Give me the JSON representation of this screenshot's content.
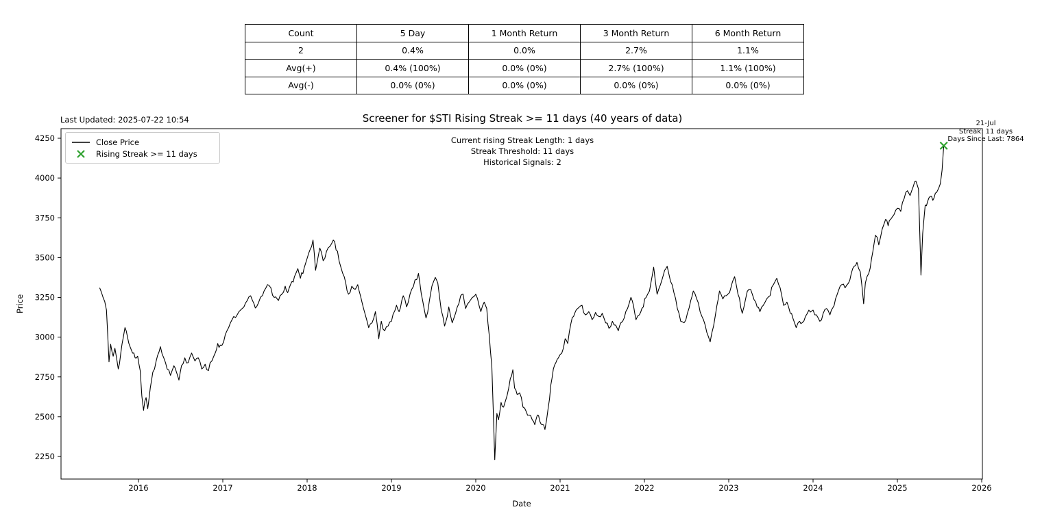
{
  "figure": {
    "last_updated": "Last Updated: 2025-07-22 10:54",
    "title": "Screener for $STI Rising Streak >= 11 days (40 years of data)"
  },
  "stats_table": {
    "headers": [
      "Count",
      "5 Day",
      "1 Month Return",
      "3 Month Return",
      "6 Month Return"
    ],
    "rows": [
      [
        "2",
        "0.4%",
        "0.0%",
        "2.7%",
        "1.1%"
      ],
      [
        "Avg(+)",
        "0.4% (100%)",
        "0.0% (0%)",
        "2.7% (100%)",
        "1.1% (100%)"
      ],
      [
        "Avg(-)",
        "0.0% (0%)",
        "0.0% (0%)",
        "0.0% (0%)",
        "0.0% (0%)"
      ]
    ]
  },
  "chart_data": {
    "type": "line",
    "title": "Screener for $STI Rising Streak >= 11 days (40 years of data)",
    "xlabel": "Date",
    "ylabel": "Price",
    "x_ticks": [
      2016,
      2017,
      2018,
      2019,
      2020,
      2021,
      2022,
      2023,
      2024,
      2025,
      2026
    ],
    "y_ticks": [
      2250,
      2500,
      2750,
      3000,
      3250,
      3500,
      3750,
      4000,
      4250
    ],
    "xlim": [
      2015.07,
      2026.01
    ],
    "ylim": [
      2100,
      4315
    ],
    "grid": false,
    "legend": {
      "position": "upper left",
      "entries": [
        {
          "label": "Close Price",
          "marker": "line",
          "color": "#000000"
        },
        {
          "label": "Rising Streak >= 11 days",
          "marker": "x",
          "color": "#2ca02c"
        }
      ]
    },
    "annotations": {
      "center": [
        "Current rising Streak Length: 1 days",
        "Streak Threshold: 11 days",
        "Historical Signals: 2"
      ],
      "last_signal": [
        "21-Jul",
        "Streak: 11 days",
        "Days Since Last: 7864"
      ]
    },
    "series": [
      {
        "name": "Close Price",
        "color": "#000000",
        "points": [
          [
            2015.54,
            3310
          ],
          [
            2015.58,
            3250
          ],
          [
            2015.62,
            3170
          ],
          [
            2015.65,
            2845
          ],
          [
            2015.67,
            2955
          ],
          [
            2015.7,
            2880
          ],
          [
            2015.72,
            2930
          ],
          [
            2015.74,
            2870
          ],
          [
            2015.76,
            2800
          ],
          [
            2015.79,
            2900
          ],
          [
            2015.82,
            3000
          ],
          [
            2015.84,
            3060
          ],
          [
            2015.87,
            3000
          ],
          [
            2015.9,
            2940
          ],
          [
            2015.93,
            2900
          ],
          [
            2015.96,
            2870
          ],
          [
            2015.99,
            2880
          ],
          [
            2016.02,
            2790
          ],
          [
            2016.04,
            2630
          ],
          [
            2016.06,
            2540
          ],
          [
            2016.09,
            2620
          ],
          [
            2016.11,
            2550
          ],
          [
            2016.14,
            2680
          ],
          [
            2016.17,
            2780
          ],
          [
            2016.21,
            2850
          ],
          [
            2016.26,
            2940
          ],
          [
            2016.3,
            2870
          ],
          [
            2016.34,
            2800
          ],
          [
            2016.38,
            2760
          ],
          [
            2016.42,
            2820
          ],
          [
            2016.45,
            2780
          ],
          [
            2016.48,
            2730
          ],
          [
            2016.51,
            2820
          ],
          [
            2016.55,
            2870
          ],
          [
            2016.59,
            2840
          ],
          [
            2016.63,
            2900
          ],
          [
            2016.67,
            2850
          ],
          [
            2016.71,
            2870
          ],
          [
            2016.75,
            2800
          ],
          [
            2016.79,
            2830
          ],
          [
            2016.83,
            2790
          ],
          [
            2016.87,
            2850
          ],
          [
            2016.91,
            2900
          ],
          [
            2016.94,
            2960
          ],
          [
            2016.97,
            2950
          ],
          [
            2017.01,
            2970
          ],
          [
            2017.05,
            3040
          ],
          [
            2017.09,
            3090
          ],
          [
            2017.13,
            3130
          ],
          [
            2017.17,
            3140
          ],
          [
            2017.21,
            3170
          ],
          [
            2017.25,
            3190
          ],
          [
            2017.29,
            3230
          ],
          [
            2017.33,
            3260
          ],
          [
            2017.37,
            3210
          ],
          [
            2017.4,
            3190
          ],
          [
            2017.44,
            3240
          ],
          [
            2017.47,
            3260
          ],
          [
            2017.53,
            3330
          ],
          [
            2017.57,
            3310
          ],
          [
            2017.61,
            3250
          ],
          [
            2017.66,
            3230
          ],
          [
            2017.7,
            3270
          ],
          [
            2017.74,
            3320
          ],
          [
            2017.77,
            3280
          ],
          [
            2017.82,
            3350
          ],
          [
            2017.85,
            3380
          ],
          [
            2017.89,
            3430
          ],
          [
            2017.92,
            3370
          ],
          [
            2017.95,
            3400
          ],
          [
            2017.98,
            3460
          ],
          [
            2018.02,
            3530
          ],
          [
            2018.07,
            3610
          ],
          [
            2018.1,
            3420
          ],
          [
            2018.15,
            3560
          ],
          [
            2018.19,
            3480
          ],
          [
            2018.23,
            3540
          ],
          [
            2018.27,
            3570
          ],
          [
            2018.31,
            3610
          ],
          [
            2018.36,
            3540
          ],
          [
            2018.4,
            3440
          ],
          [
            2018.44,
            3380
          ],
          [
            2018.49,
            3270
          ],
          [
            2018.53,
            3320
          ],
          [
            2018.57,
            3300
          ],
          [
            2018.6,
            3330
          ],
          [
            2018.65,
            3220
          ],
          [
            2018.69,
            3140
          ],
          [
            2018.73,
            3060
          ],
          [
            2018.77,
            3090
          ],
          [
            2018.81,
            3160
          ],
          [
            2018.85,
            2990
          ],
          [
            2018.88,
            3100
          ],
          [
            2018.92,
            3040
          ],
          [
            2018.96,
            3070
          ],
          [
            2019.0,
            3100
          ],
          [
            2019.06,
            3200
          ],
          [
            2019.09,
            3160
          ],
          [
            2019.14,
            3260
          ],
          [
            2019.18,
            3190
          ],
          [
            2019.24,
            3300
          ],
          [
            2019.28,
            3360
          ],
          [
            2019.32,
            3400
          ],
          [
            2019.37,
            3230
          ],
          [
            2019.41,
            3120
          ],
          [
            2019.45,
            3230
          ],
          [
            2019.48,
            3320
          ],
          [
            2019.52,
            3375
          ],
          [
            2019.55,
            3340
          ],
          [
            2019.59,
            3170
          ],
          [
            2019.63,
            3070
          ],
          [
            2019.68,
            3190
          ],
          [
            2019.72,
            3090
          ],
          [
            2019.76,
            3150
          ],
          [
            2019.82,
            3260
          ],
          [
            2019.85,
            3270
          ],
          [
            2019.88,
            3180
          ],
          [
            2019.92,
            3220
          ],
          [
            2019.96,
            3250
          ],
          [
            2020.0,
            3270
          ],
          [
            2020.06,
            3160
          ],
          [
            2020.1,
            3220
          ],
          [
            2020.13,
            3180
          ],
          [
            2020.16,
            3010
          ],
          [
            2020.19,
            2820
          ],
          [
            2020.21,
            2500
          ],
          [
            2020.225,
            2230
          ],
          [
            2020.25,
            2520
          ],
          [
            2020.27,
            2480
          ],
          [
            2020.3,
            2590
          ],
          [
            2020.33,
            2560
          ],
          [
            2020.37,
            2630
          ],
          [
            2020.41,
            2740
          ],
          [
            2020.44,
            2795
          ],
          [
            2020.46,
            2680
          ],
          [
            2020.49,
            2640
          ],
          [
            2020.52,
            2650
          ],
          [
            2020.56,
            2560
          ],
          [
            2020.6,
            2530
          ],
          [
            2020.63,
            2510
          ],
          [
            2020.67,
            2480
          ],
          [
            2020.7,
            2450
          ],
          [
            2020.73,
            2510
          ],
          [
            2020.76,
            2470
          ],
          [
            2020.79,
            2450
          ],
          [
            2020.82,
            2420
          ],
          [
            2020.84,
            2480
          ],
          [
            2020.86,
            2560
          ],
          [
            2020.89,
            2700
          ],
          [
            2020.92,
            2800
          ],
          [
            2020.95,
            2840
          ],
          [
            2020.98,
            2870
          ],
          [
            2021.02,
            2900
          ],
          [
            2021.06,
            2990
          ],
          [
            2021.09,
            2960
          ],
          [
            2021.13,
            3090
          ],
          [
            2021.16,
            3130
          ],
          [
            2021.19,
            3170
          ],
          [
            2021.26,
            3200
          ],
          [
            2021.3,
            3140
          ],
          [
            2021.34,
            3160
          ],
          [
            2021.38,
            3110
          ],
          [
            2021.42,
            3155
          ],
          [
            2021.46,
            3130
          ],
          [
            2021.5,
            3150
          ],
          [
            2021.54,
            3090
          ],
          [
            2021.58,
            3055
          ],
          [
            2021.62,
            3100
          ],
          [
            2021.66,
            3075
          ],
          [
            2021.69,
            3040
          ],
          [
            2021.72,
            3090
          ],
          [
            2021.76,
            3120
          ],
          [
            2021.8,
            3180
          ],
          [
            2021.84,
            3250
          ],
          [
            2021.87,
            3200
          ],
          [
            2021.9,
            3110
          ],
          [
            2021.94,
            3140
          ],
          [
            2021.97,
            3180
          ],
          [
            2022.02,
            3250
          ],
          [
            2022.06,
            3290
          ],
          [
            2022.11,
            3440
          ],
          [
            2022.15,
            3270
          ],
          [
            2022.19,
            3330
          ],
          [
            2022.24,
            3420
          ],
          [
            2022.27,
            3445
          ],
          [
            2022.31,
            3350
          ],
          [
            2022.35,
            3280
          ],
          [
            2022.39,
            3180
          ],
          [
            2022.43,
            3100
          ],
          [
            2022.47,
            3090
          ],
          [
            2022.51,
            3150
          ],
          [
            2022.55,
            3230
          ],
          [
            2022.58,
            3290
          ],
          [
            2022.62,
            3240
          ],
          [
            2022.66,
            3160
          ],
          [
            2022.7,
            3110
          ],
          [
            2022.74,
            3030
          ],
          [
            2022.78,
            2970
          ],
          [
            2022.82,
            3070
          ],
          [
            2022.86,
            3200
          ],
          [
            2022.89,
            3290
          ],
          [
            2022.93,
            3240
          ],
          [
            2022.97,
            3260
          ],
          [
            2023.01,
            3280
          ],
          [
            2023.04,
            3340
          ],
          [
            2023.07,
            3380
          ],
          [
            2023.11,
            3270
          ],
          [
            2023.16,
            3150
          ],
          [
            2023.2,
            3240
          ],
          [
            2023.24,
            3300
          ],
          [
            2023.28,
            3270
          ],
          [
            2023.32,
            3220
          ],
          [
            2023.37,
            3160
          ],
          [
            2023.41,
            3200
          ],
          [
            2023.45,
            3240
          ],
          [
            2023.49,
            3260
          ],
          [
            2023.53,
            3330
          ],
          [
            2023.57,
            3370
          ],
          [
            2023.61,
            3310
          ],
          [
            2023.65,
            3200
          ],
          [
            2023.69,
            3220
          ],
          [
            2023.73,
            3150
          ],
          [
            2023.76,
            3120
          ],
          [
            2023.8,
            3060
          ],
          [
            2023.84,
            3100
          ],
          [
            2023.87,
            3090
          ],
          [
            2023.91,
            3130
          ],
          [
            2023.95,
            3170
          ],
          [
            2024.0,
            3170
          ],
          [
            2024.04,
            3140
          ],
          [
            2024.08,
            3100
          ],
          [
            2024.12,
            3150
          ],
          [
            2024.16,
            3180
          ],
          [
            2024.2,
            3140
          ],
          [
            2024.25,
            3200
          ],
          [
            2024.3,
            3290
          ],
          [
            2024.34,
            3330
          ],
          [
            2024.38,
            3310
          ],
          [
            2024.42,
            3340
          ],
          [
            2024.47,
            3430
          ],
          [
            2024.52,
            3470
          ],
          [
            2024.56,
            3410
          ],
          [
            2024.6,
            3210
          ],
          [
            2024.62,
            3340
          ],
          [
            2024.66,
            3400
          ],
          [
            2024.71,
            3540
          ],
          [
            2024.74,
            3640
          ],
          [
            2024.78,
            3580
          ],
          [
            2024.82,
            3680
          ],
          [
            2024.86,
            3740
          ],
          [
            2024.89,
            3700
          ],
          [
            2024.92,
            3740
          ],
          [
            2024.96,
            3770
          ],
          [
            2025.0,
            3810
          ],
          [
            2025.04,
            3790
          ],
          [
            2025.08,
            3870
          ],
          [
            2025.12,
            3920
          ],
          [
            2025.15,
            3890
          ],
          [
            2025.19,
            3950
          ],
          [
            2025.22,
            3980
          ],
          [
            2025.25,
            3930
          ],
          [
            2025.28,
            3390
          ],
          [
            2025.3,
            3650
          ],
          [
            2025.33,
            3830
          ],
          [
            2025.36,
            3855
          ],
          [
            2025.39,
            3885
          ],
          [
            2025.42,
            3860
          ],
          [
            2025.45,
            3905
          ],
          [
            2025.48,
            3925
          ],
          [
            2025.51,
            3965
          ],
          [
            2025.53,
            4050
          ],
          [
            2025.55,
            4203
          ]
        ]
      }
    ],
    "signals": [
      {
        "x": 2025.55,
        "y": 4203,
        "date_label": "21-Jul"
      }
    ]
  },
  "colors": {
    "line": "#000000",
    "signal_marker": "#2ca02c",
    "legend_border": "#c9c9c9",
    "frame": "#000000",
    "background": "#ffffff"
  }
}
